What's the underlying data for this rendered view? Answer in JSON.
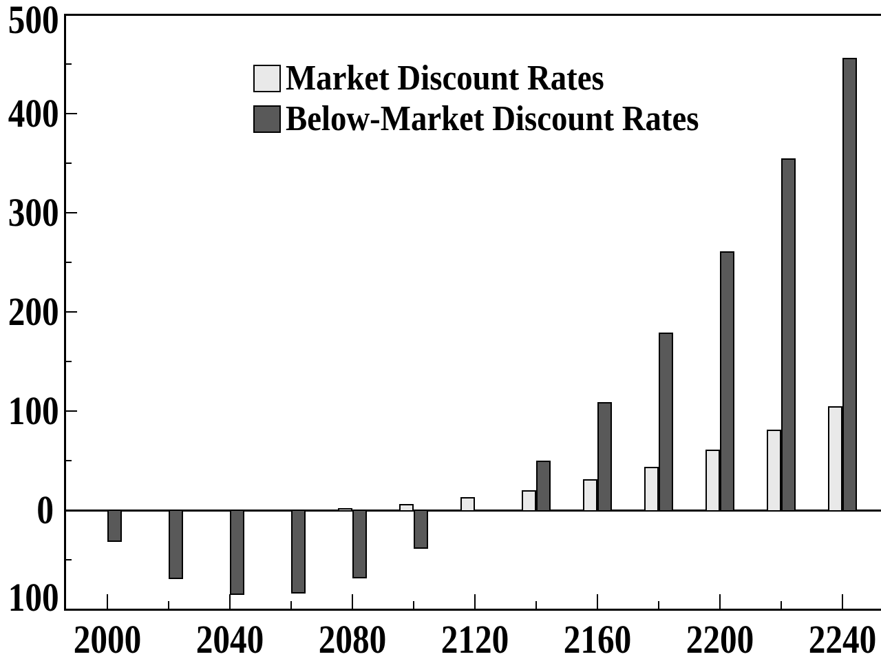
{
  "chart_data": {
    "type": "bar",
    "title": "",
    "categories": [
      2000,
      2020,
      2040,
      2060,
      2080,
      2100,
      2120,
      2140,
      2160,
      2180,
      2200,
      2220,
      2240
    ],
    "series": [
      {
        "name": "Market Discount Rates",
        "color": "#e9e9e9",
        "values": [
          0,
          0,
          0,
          0,
          2,
          6,
          13,
          20,
          31,
          44,
          61,
          81,
          105
        ]
      },
      {
        "name": "Below-Market Discount Rates",
        "color": "#595959",
        "values": [
          -31,
          -69,
          -85,
          -83,
          -68,
          -38,
          0,
          50,
          109,
          179,
          261,
          355,
          456
        ]
      }
    ],
    "xlabel": "",
    "ylabel": "",
    "ylim": [
      -100,
      500
    ],
    "y_major_step": 100,
    "y_minor_step": 50,
    "y_tick_labels": [
      {
        "value": 500,
        "label": "500"
      },
      {
        "value": 400,
        "label": "400"
      },
      {
        "value": 300,
        "label": "300"
      },
      {
        "value": 200,
        "label": "200"
      },
      {
        "value": 100,
        "label": "100"
      },
      {
        "value": 0,
        "label": "0"
      },
      {
        "value": -100,
        "label": "100"
      }
    ],
    "x_tick_step": 20,
    "x_label_step": 40,
    "x_tick_labels": [
      "2000",
      "2040",
      "2080",
      "2120",
      "2160",
      "2200",
      "2240"
    ],
    "legend_position": "top-left-inside",
    "grid": false,
    "axis_color": "#000000",
    "bar_border_color": "#000000",
    "background_color": "#ffffff",
    "zero_baseline": true
  }
}
